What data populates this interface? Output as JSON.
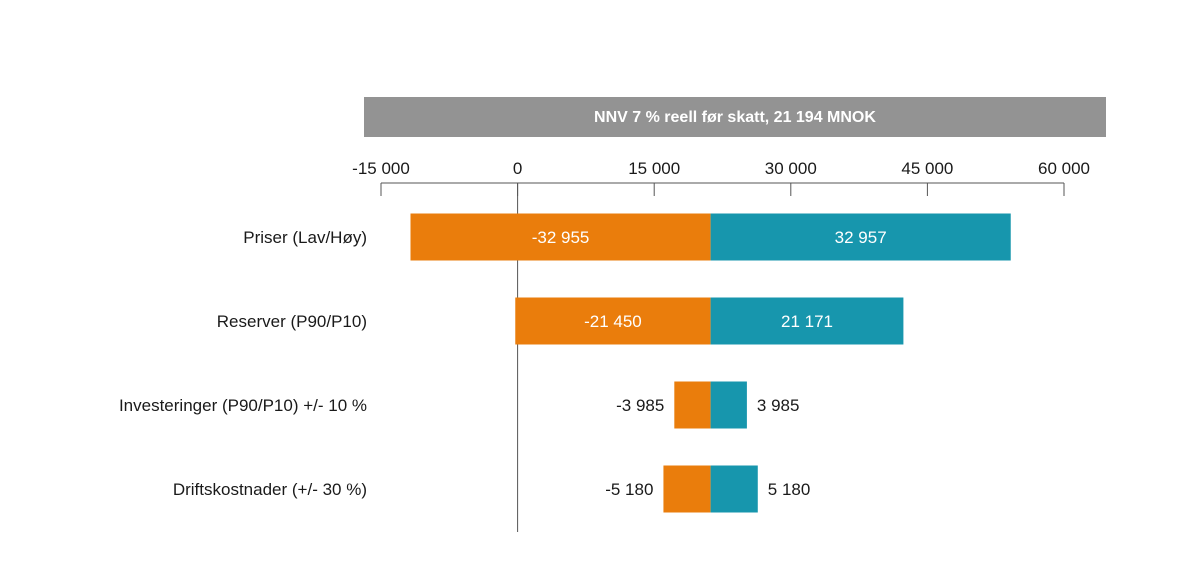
{
  "chart_data": {
    "type": "tornado",
    "title": "NNV 7 % reell før skatt, 21 194 MNOK",
    "base_value": 21194,
    "xlim": [
      -15000,
      60000
    ],
    "x_ticks": [
      -15000,
      0,
      15000,
      30000,
      45000,
      60000
    ],
    "x_tick_labels": [
      "-15 000",
      "0",
      "15 000",
      "30 000",
      "45 000",
      "60 000"
    ],
    "categories": [
      "Priser (Lav/Høy)",
      "Reserver (P90/P10)",
      "Investeringer (P90/P10) +/- 10 %",
      "Driftskostnader (+/- 30 %)"
    ],
    "series": [
      {
        "name": "Lav",
        "color": "#ea7d0c",
        "values": [
          -32955,
          -21450,
          -3985,
          -5180
        ],
        "labels": [
          "-32 955",
          "-21 450",
          "-3 985",
          "-5 180"
        ]
      },
      {
        "name": "Høy",
        "color": "#1796ad",
        "values": [
          32957,
          21171,
          3985,
          5180
        ],
        "labels": [
          "32 957",
          "21 171",
          "3 985",
          "5 180"
        ]
      }
    ],
    "colors": {
      "title_bg": "#939393",
      "axis": "#555555"
    }
  }
}
